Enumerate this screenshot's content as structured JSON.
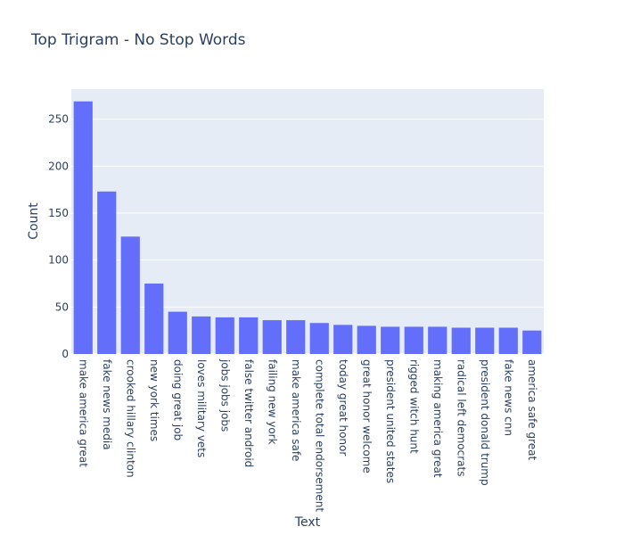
{
  "chart_data": {
    "type": "bar",
    "title": "Top Trigram - No Stop Words",
    "xlabel": "Text",
    "ylabel": "Count",
    "ylim": [
      0,
      282
    ],
    "yticks": [
      0,
      50,
      100,
      150,
      200,
      250
    ],
    "grid": true,
    "colors": {
      "bar": "#636efa",
      "plot_bg": "#e5ecf6",
      "text": "#2a3f5f",
      "grid": "#ffffff"
    },
    "categories": [
      "make america great",
      "fake news media",
      "crooked hillary clinton",
      "new york times",
      "doing great job",
      "loves military vets",
      "jobs jobs jobs",
      "false twitter android",
      "failing new york",
      "make america safe",
      "complete total endorsement",
      "today great honor",
      "great honor welcome",
      "president united states",
      "rigged witch hunt",
      "making america great",
      "radical left democrats",
      "president donald trump",
      "fake news cnn",
      "america safe great"
    ],
    "values": [
      269,
      173,
      125,
      75,
      45,
      40,
      39,
      39,
      36,
      36,
      33,
      31,
      30,
      29,
      29,
      29,
      28,
      28,
      28,
      25
    ]
  }
}
